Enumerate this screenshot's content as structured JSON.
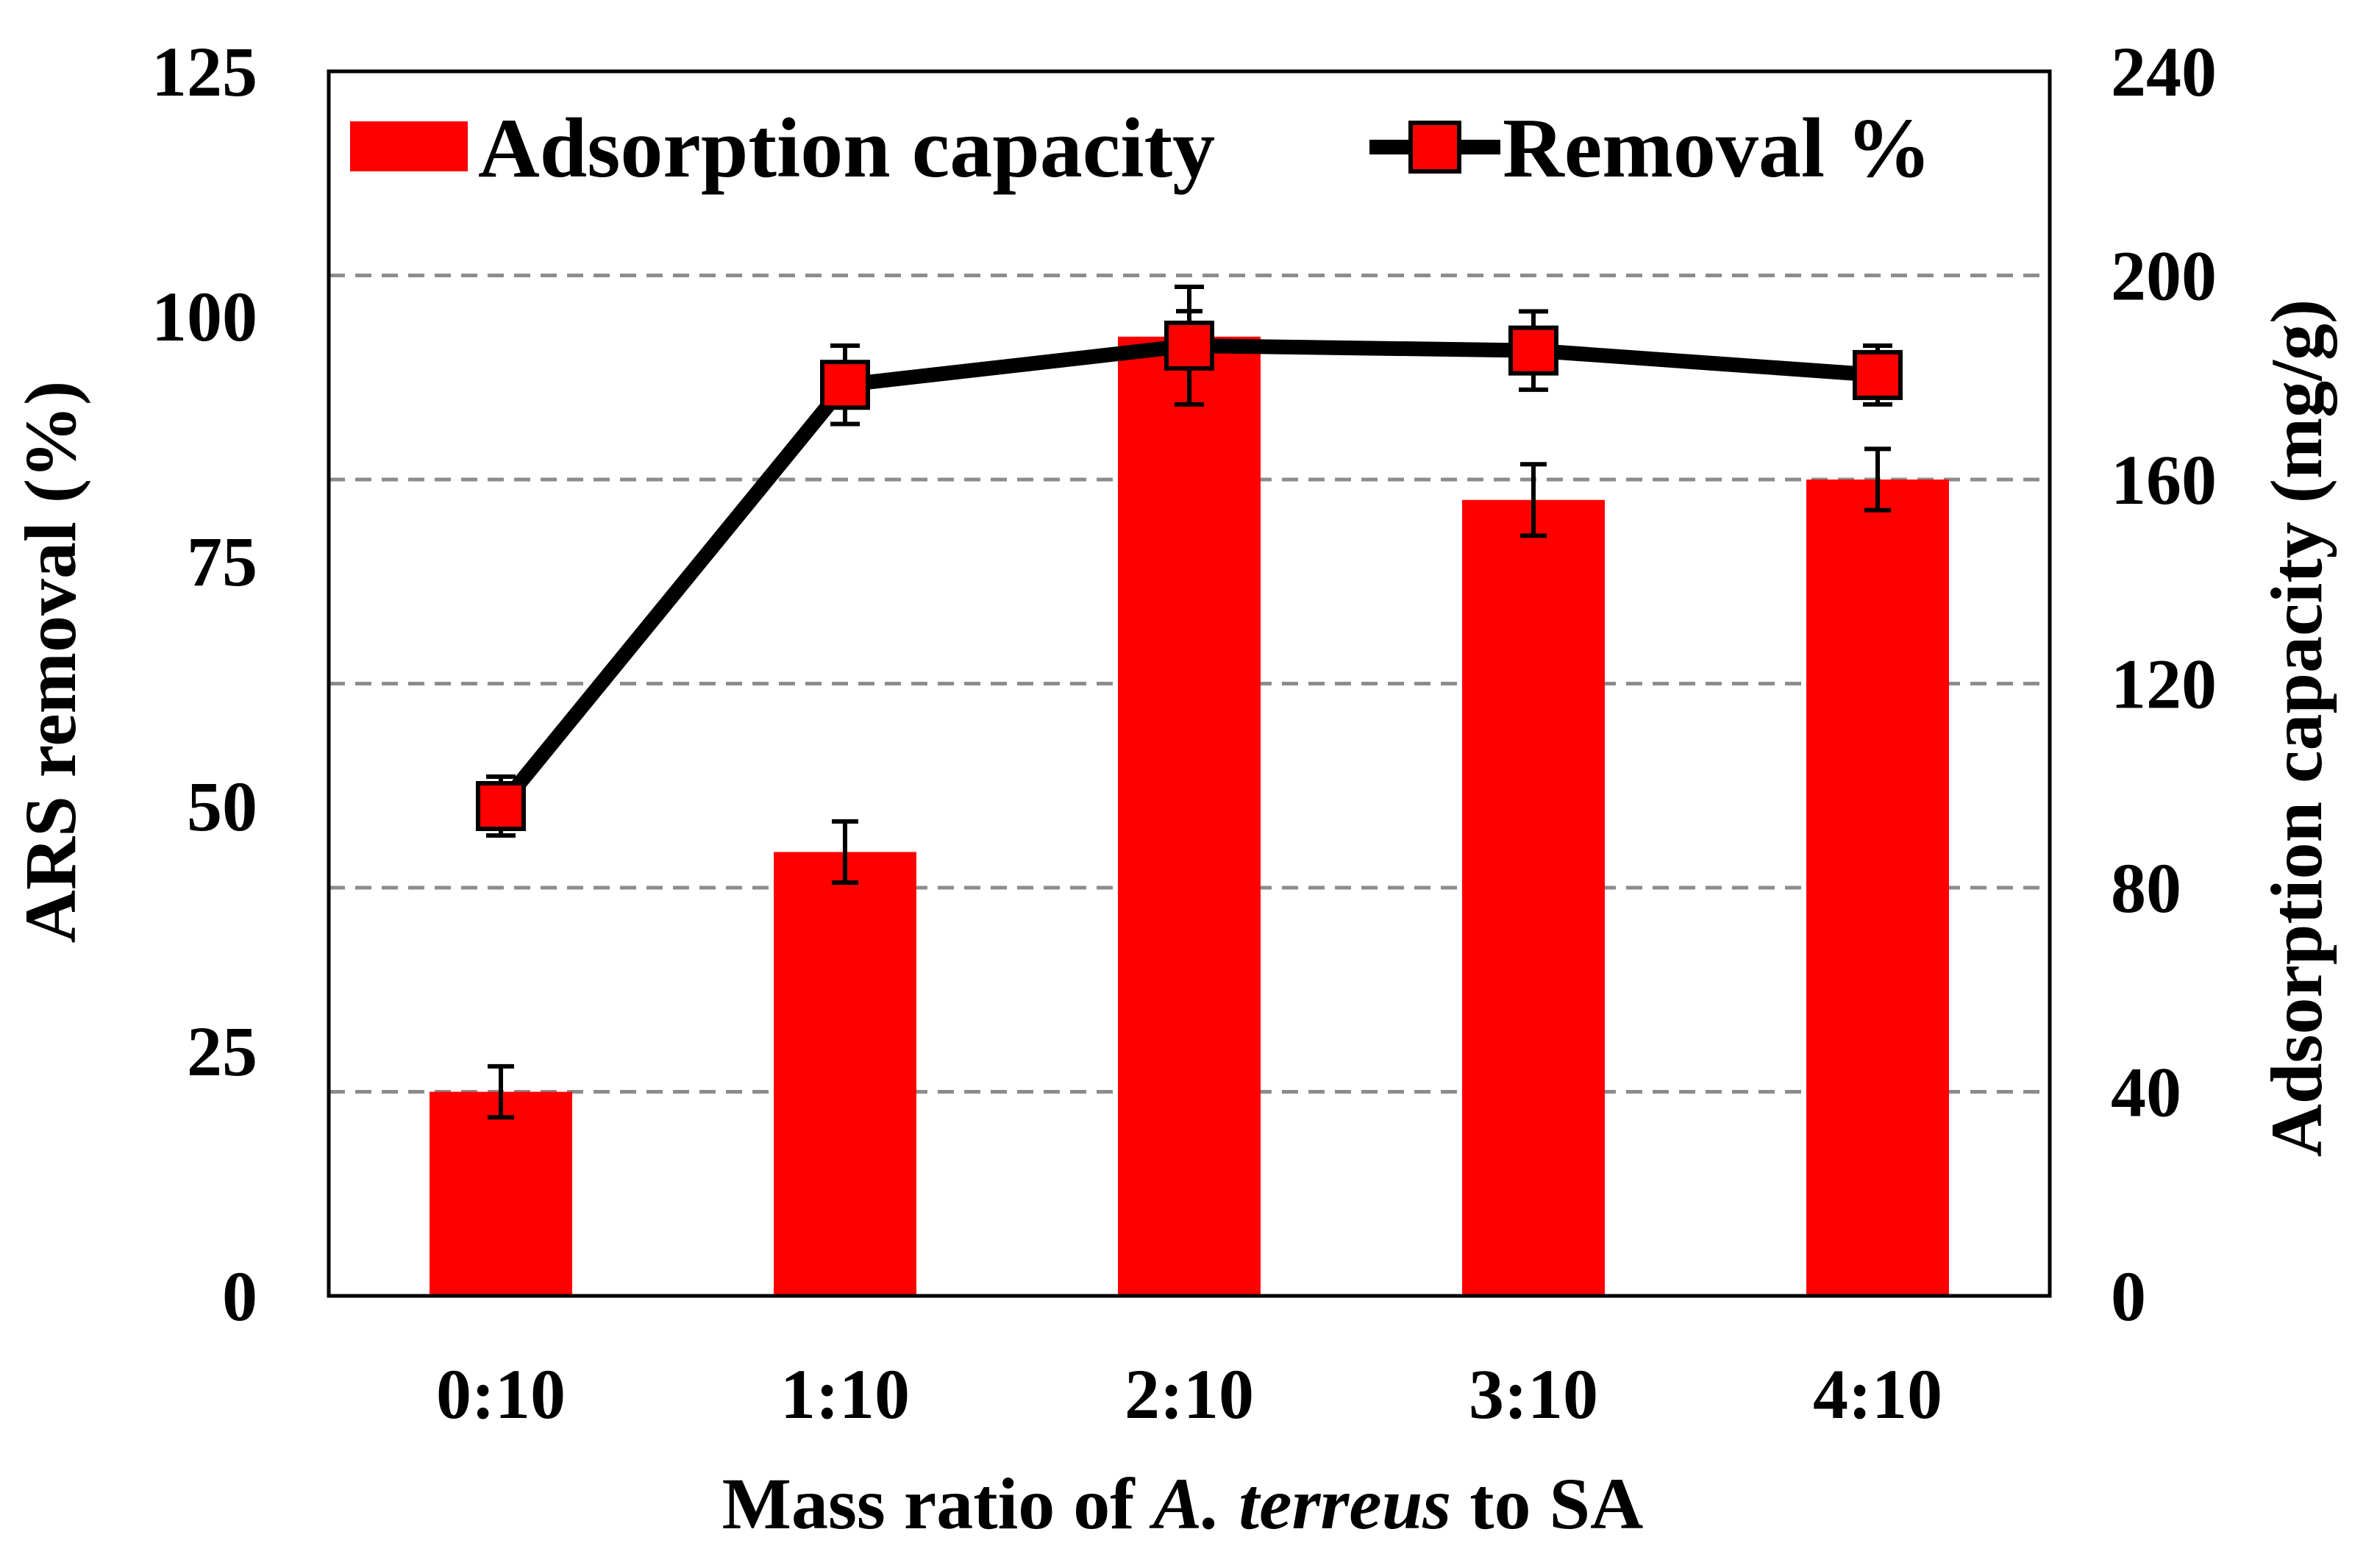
{
  "chart_data": {
    "type": "bar+line",
    "categories": [
      "0:10",
      "1:10",
      "2:10",
      "3:10",
      "4:10"
    ],
    "xlabel": {
      "prefix": "Mass ratio of ",
      "italic": "A. terreus",
      "suffix": " to SA"
    },
    "ylabel_left": "ARS removal (%)",
    "ylabel_right": "Adsorption capacity (mg/g)",
    "ylim_left": [
      0,
      125
    ],
    "ylim_right": [
      0,
      240
    ],
    "yticks_left": [
      "0",
      "25",
      "50",
      "75",
      "100",
      "125"
    ],
    "yticks_right": [
      "0",
      "40",
      "80",
      "120",
      "160",
      "200",
      "240"
    ],
    "gridlines_right": [
      40,
      80,
      120,
      160,
      200
    ],
    "grid": "dashed horizontal at right-axis ticks",
    "legend_position": "top",
    "series": [
      {
        "name": "Adsorption capacity",
        "type": "bar",
        "axis": "right",
        "color": "#ff0000",
        "values": [
          40,
          87,
          188,
          156,
          160
        ],
        "errors": [
          5,
          6,
          5,
          7,
          6
        ]
      },
      {
        "name": "Removal %",
        "type": "line",
        "axis": "left",
        "color": "#000000",
        "marker_fill": "#ff0000",
        "values": [
          50,
          93,
          97,
          96.5,
          94
        ],
        "errors": [
          3,
          4,
          6,
          4,
          3
        ]
      }
    ]
  }
}
